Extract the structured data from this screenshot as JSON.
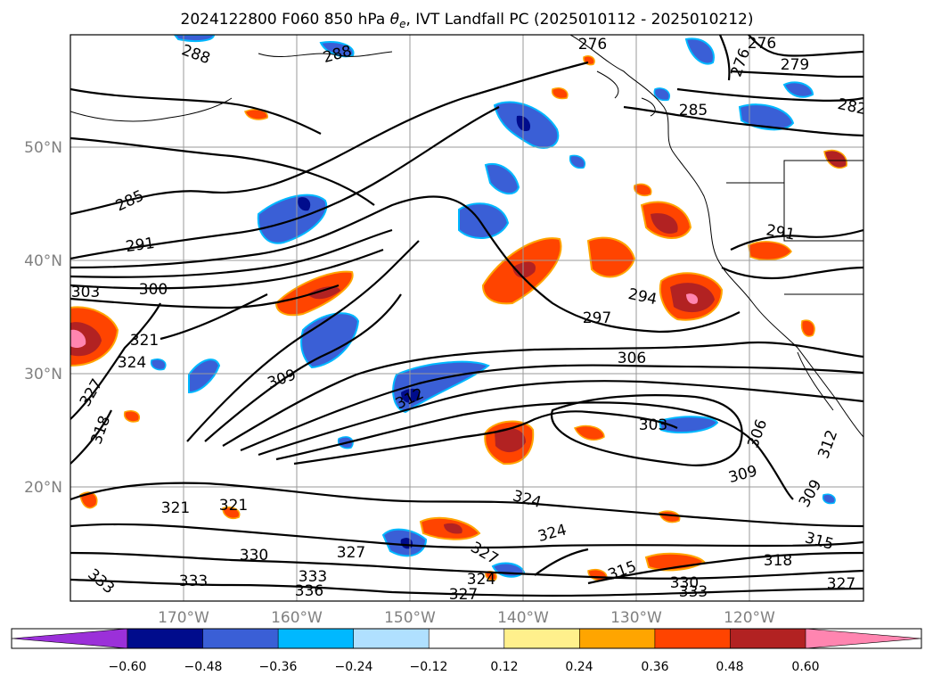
{
  "title": "2024122800 F060 850 hPa θe, IVT Landfall PC (2025010112 - 2025010212)",
  "title_parts": {
    "prefix": "2024122800 F060 850 hPa ",
    "theta": "θ",
    "sub": "e",
    "suffix": ", IVT Landfall PC (2025010112 - 2025010212)"
  },
  "map": {
    "lon_ticks": [
      "170°W",
      "160°W",
      "150°W",
      "140°W",
      "130°W",
      "120°W"
    ],
    "lat_ticks": [
      "50°N",
      "40°N",
      "30°N",
      "20°N"
    ],
    "grid": true
  },
  "colorbar": {
    "ticks": [
      "−0.60",
      "−0.48",
      "−0.36",
      "−0.24",
      "−0.12",
      "0.12",
      "0.24",
      "0.36",
      "0.48",
      "0.60"
    ],
    "colors": [
      "#9b30d9",
      "#000c8c",
      "#3a5fd6",
      "#00b8ff",
      "#b0e0ff",
      "#ffffff",
      "#fff08c",
      "#ffa500",
      "#ff4400",
      "#b22222",
      "#ff85b0"
    ],
    "extend": "both"
  },
  "contour_labels": [
    "288",
    "288",
    "276",
    "276",
    "276",
    "279",
    "282",
    "285",
    "285",
    "291",
    "291",
    "294",
    "297",
    "300",
    "303",
    "303",
    "306",
    "306",
    "309",
    "309",
    "309",
    "312",
    "312",
    "315",
    "315",
    "318",
    "318",
    "321",
    "321",
    "324",
    "324",
    "324",
    "324",
    "327",
    "327",
    "327",
    "327",
    "330",
    "330",
    "333",
    "333",
    "333",
    "333",
    "336",
    "327",
    "321"
  ]
}
